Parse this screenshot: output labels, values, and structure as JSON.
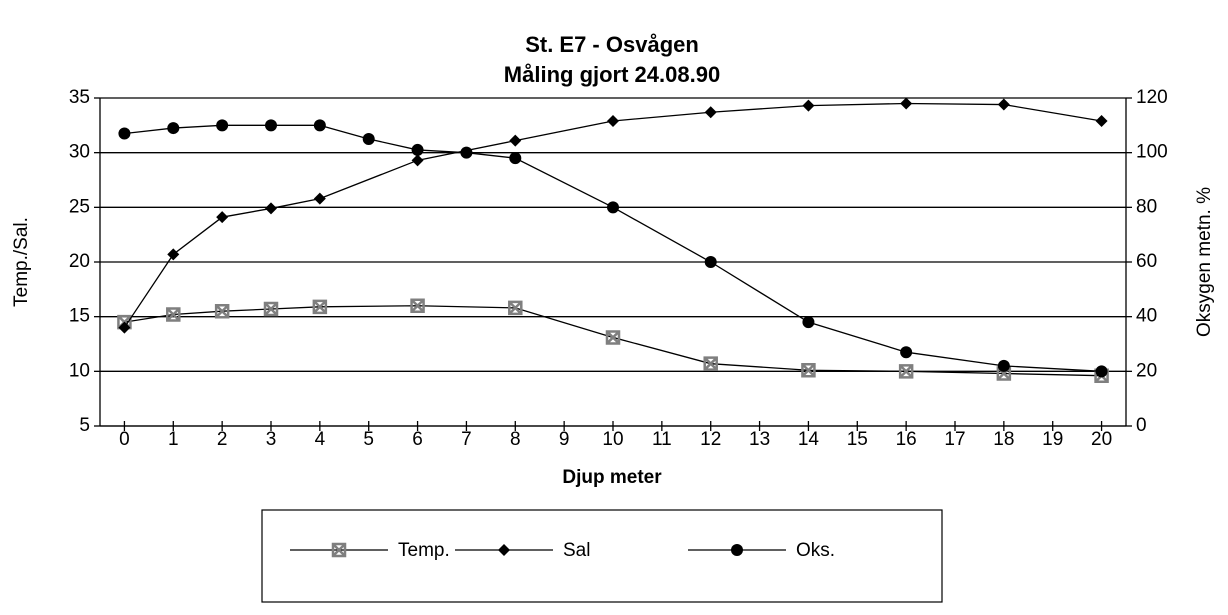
{
  "chart_data": {
    "type": "line",
    "title": [
      "St. E7 - Osvågen",
      "Måling gjort 24.08.90"
    ],
    "xlabel": "Djup meter",
    "ylabel": "Temp./Sal.",
    "y2label": "Oksygen metn. %",
    "xlim": [
      -0.5,
      20.5
    ],
    "xticks": [
      0,
      1,
      2,
      3,
      4,
      5,
      6,
      7,
      8,
      9,
      10,
      11,
      12,
      13,
      14,
      15,
      16,
      17,
      18,
      19,
      20
    ],
    "ylim": [
      5,
      35
    ],
    "yticks": [
      5,
      10,
      15,
      20,
      25,
      30,
      35
    ],
    "y2lim": [
      0,
      120
    ],
    "y2ticks": [
      0,
      20,
      40,
      60,
      80,
      100,
      120
    ],
    "grid": true,
    "legend": "bottom",
    "series": [
      {
        "name": "Temp.",
        "color": "#7f7f7f",
        "marker": "asterisk",
        "x": [
          0,
          1,
          2,
          3,
          4,
          6,
          8,
          10,
          12,
          14,
          16,
          18,
          20
        ],
        "values": [
          14.5,
          15.2,
          15.5,
          15.7,
          15.9,
          16.0,
          15.8,
          13.1,
          10.7,
          10.1,
          10.0,
          9.8,
          9.6
        ]
      },
      {
        "name": "Sal",
        "color": "#000000",
        "marker": "diamond",
        "x": [
          0,
          1,
          2,
          3,
          4,
          6,
          8,
          10,
          12,
          14,
          16,
          18,
          20
        ],
        "values": [
          14.0,
          20.7,
          24.1,
          24.9,
          25.8,
          29.3,
          31.1,
          32.9,
          33.7,
          34.3,
          34.5,
          34.4,
          32.9
        ]
      },
      {
        "name": "Oks.",
        "color": "#000000",
        "marker": "circle",
        "axis": "y2",
        "x": [
          0,
          1,
          2,
          3,
          4,
          5,
          6,
          7,
          8,
          10,
          12,
          14,
          16,
          18,
          20
        ],
        "values": [
          107,
          109,
          110,
          110,
          110,
          105,
          101,
          100,
          98,
          80,
          60,
          38,
          27,
          22,
          20
        ]
      }
    ]
  }
}
